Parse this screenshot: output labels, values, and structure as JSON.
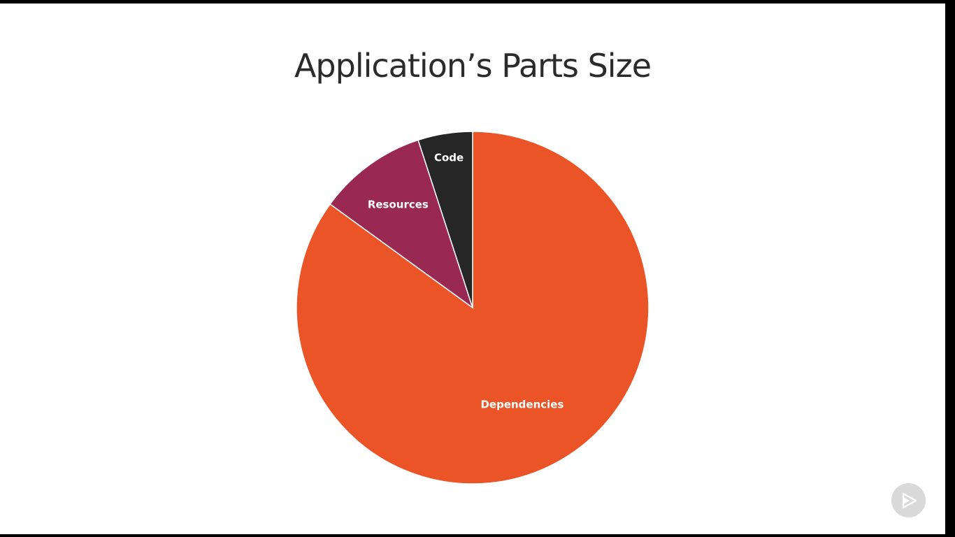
{
  "slide": {
    "title": "Application’s Parts Size"
  },
  "colors": {
    "background": "#ffffff",
    "title": "#2b2b2b",
    "label": "#ffffff",
    "separator": "#ffffff"
  },
  "player": {
    "icon": "play-logo-icon"
  },
  "chart_data": {
    "type": "pie",
    "title": "",
    "start_angle_deg": 0,
    "direction": "clockwise",
    "legend": "none",
    "slices": [
      {
        "label": "Dependencies",
        "value": 85,
        "color": "#ea5426"
      },
      {
        "label": "Resources",
        "value": 10,
        "color": "#992852"
      },
      {
        "label": "Code",
        "value": 5,
        "color": "#262626"
      }
    ]
  }
}
